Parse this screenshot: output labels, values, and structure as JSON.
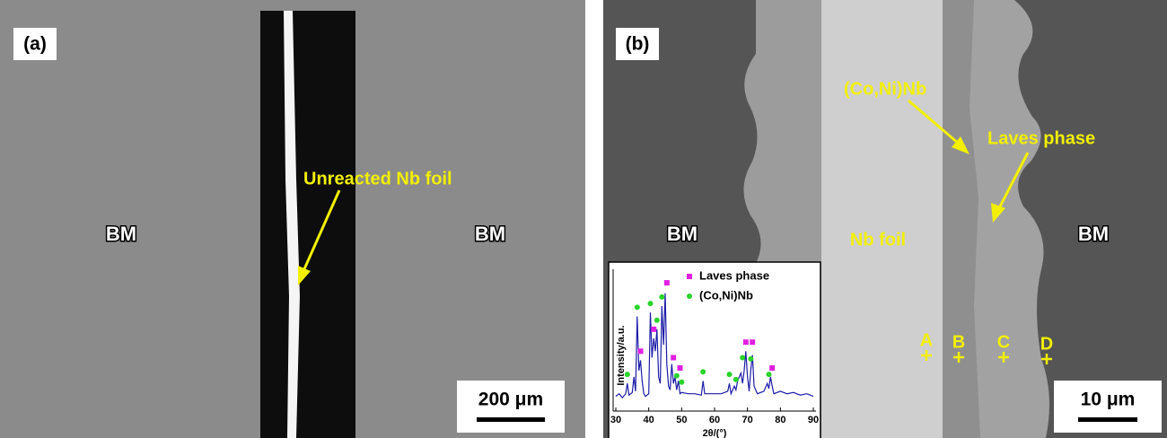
{
  "panels": {
    "a": {
      "label": "(a)",
      "bm_left": "BM",
      "bm_right": "BM",
      "annotation": "Unreacted Nb foil",
      "scale_bar": "200 μm"
    },
    "b": {
      "label": "(b)",
      "annotations": [
        "(Co,Ni)Nb",
        "Laves phase"
      ],
      "bm_left": "BM",
      "nb_foil": "Nb foil",
      "bm_right": "BM",
      "points": [
        "A",
        "B",
        "C",
        "D"
      ],
      "scale_bar": "10 μm"
    }
  },
  "chart_data": {
    "type": "line",
    "color": "#1c1ca8",
    "xlabel": "2θ/(°)",
    "ylabel": "Intensity/a.u.",
    "xlim": [
      30,
      90
    ],
    "xticks": [
      30,
      40,
      50,
      60,
      70,
      80,
      90
    ],
    "ylim": [
      0,
      105
    ],
    "x": [
      30,
      31,
      32,
      33,
      33.5,
      34,
      35,
      35.5,
      36,
      36.5,
      37,
      37.5,
      38,
      38.5,
      39,
      40,
      40.5,
      41,
      41.5,
      42,
      42.5,
      43,
      43.5,
      44,
      44.5,
      45,
      45.5,
      46,
      46.5,
      47,
      47.5,
      48,
      48.5,
      49,
      49.5,
      50,
      52,
      54,
      56,
      56.5,
      57,
      59,
      62,
      64,
      64.5,
      65,
      66,
      66.5,
      67,
      68,
      68.5,
      69,
      69.5,
      70,
      70.5,
      71,
      71.5,
      72,
      73,
      75,
      76,
      76.5,
      77,
      77.5,
      78,
      80,
      82,
      84,
      86,
      88,
      90
    ],
    "values": [
      10,
      12,
      9,
      12,
      20,
      11,
      13,
      25,
      14,
      72,
      30,
      38,
      22,
      12,
      10,
      12,
      75,
      40,
      55,
      45,
      62,
      25,
      20,
      80,
      50,
      90,
      35,
      18,
      15,
      35,
      20,
      25,
      15,
      22,
      12,
      13,
      12,
      12,
      11,
      22,
      12,
      12,
      12,
      14,
      20,
      12,
      18,
      15,
      22,
      28,
      20,
      30,
      45,
      25,
      14,
      30,
      42,
      18,
      12,
      14,
      20,
      16,
      25,
      18,
      12,
      14,
      12,
      13,
      11,
      12,
      10
    ],
    "series": [
      {
        "name": "Laves phase",
        "color": "#e020e0",
        "marker": "square",
        "x": [
          37.5,
          41.5,
          45.5,
          47.5,
          49.5,
          69.5,
          71.5,
          77.5
        ],
        "values": [
          45,
          62,
          98,
          40,
          32,
          52,
          52,
          32
        ]
      },
      {
        "name": "(Co,Ni)Nb",
        "color": "#2ad42a",
        "marker": "circle",
        "x": [
          33.5,
          36.5,
          40.5,
          42.5,
          44,
          48.5,
          50,
          56.5,
          64.5,
          66.5,
          68.5,
          71,
          76.5
        ],
        "values": [
          27,
          79,
          82,
          69,
          87,
          26,
          21,
          29,
          27,
          23,
          40,
          39,
          27
        ]
      }
    ]
  }
}
